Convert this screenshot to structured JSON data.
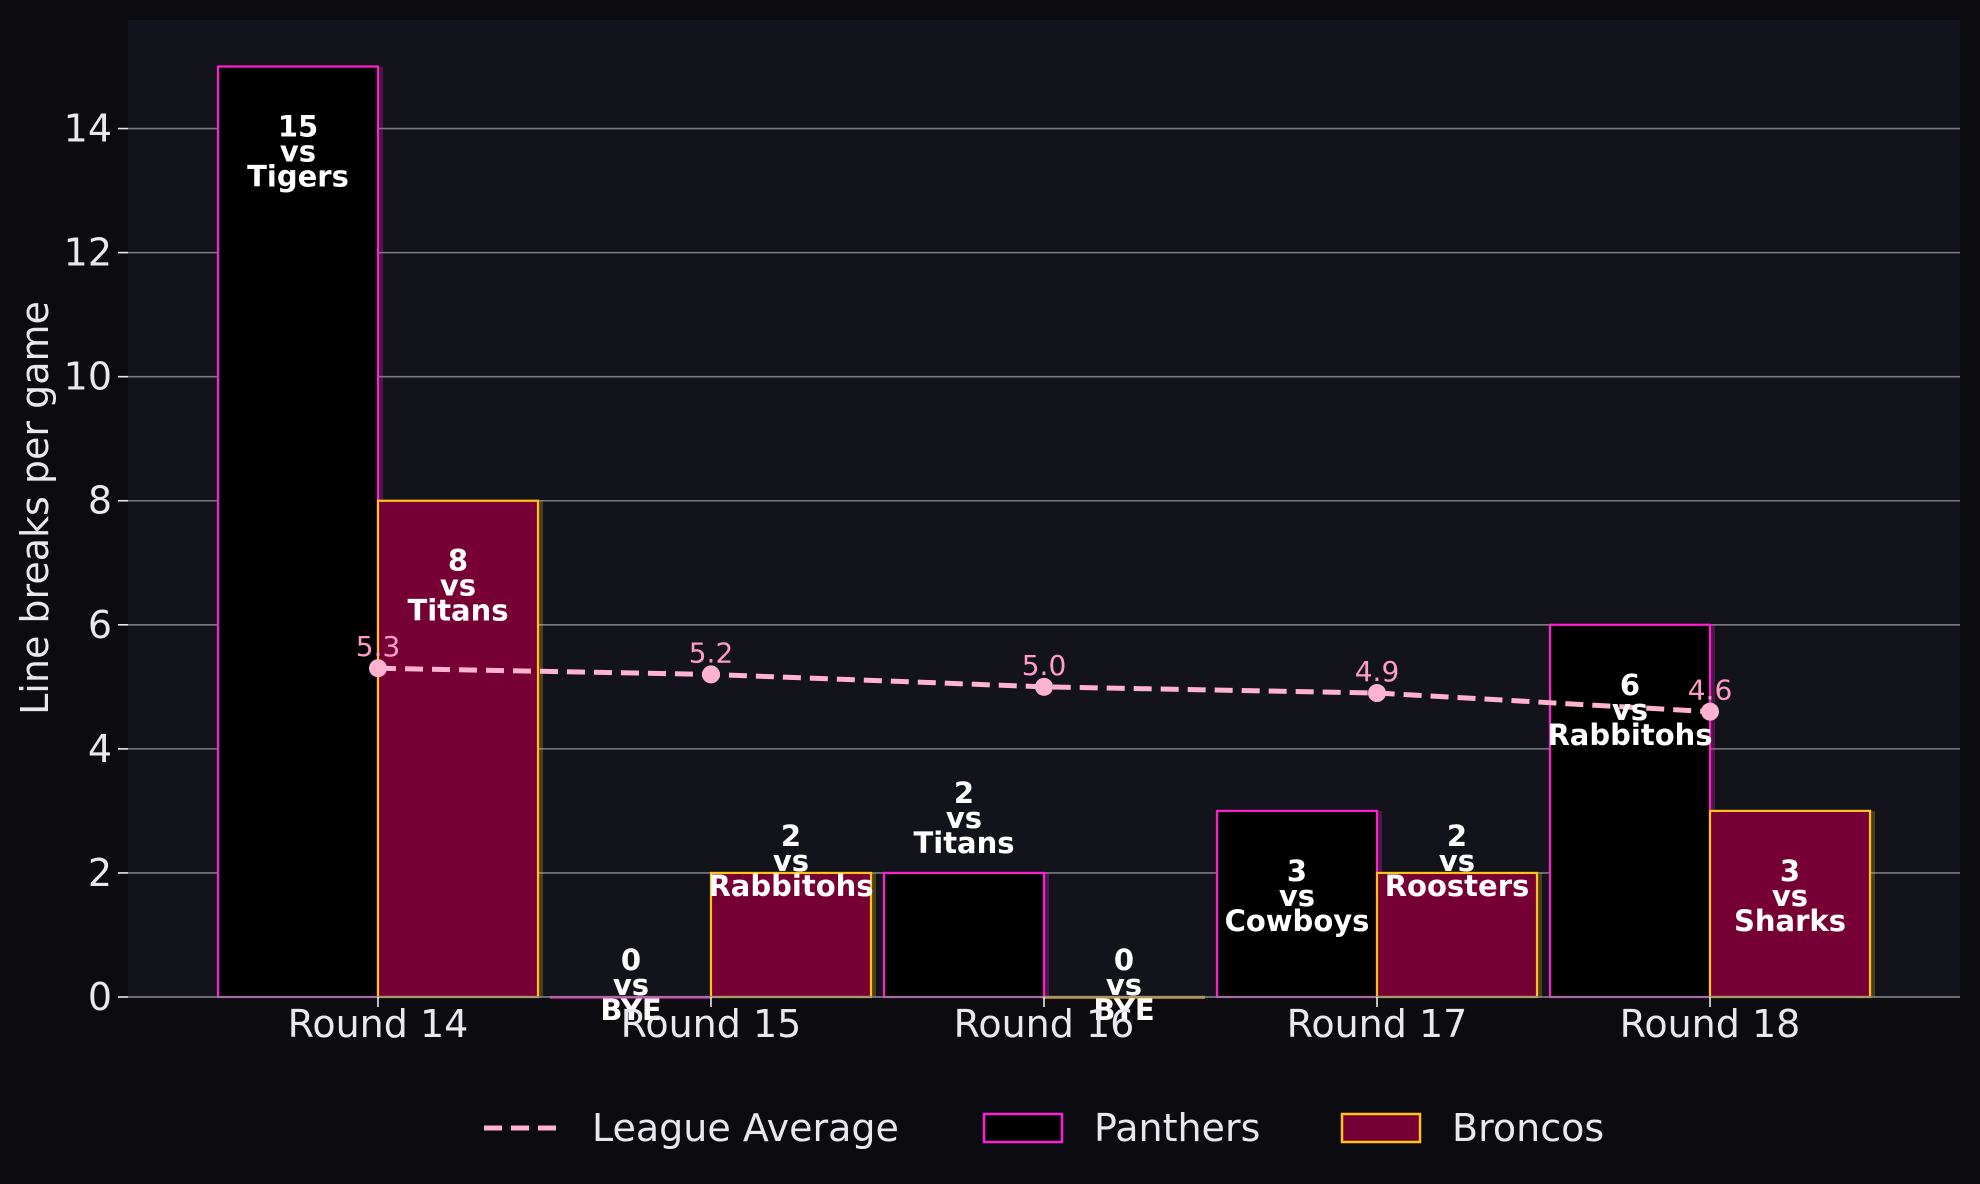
{
  "chart_data": {
    "type": "bar",
    "categories": [
      "Round 14",
      "Round 15",
      "Round 16",
      "Round 17",
      "Round 18"
    ],
    "ylabel": "Line breaks per game",
    "xlabel": "",
    "ylim": [
      0,
      15.75
    ],
    "yticks": [
      0,
      2,
      4,
      6,
      8,
      10,
      12,
      14
    ],
    "grid": "horizontal",
    "legend_position": "bottom",
    "series": [
      {
        "name": "Panthers",
        "type": "bar",
        "values": [
          15,
          0,
          2,
          3,
          6
        ],
        "opponents": [
          "Tigers",
          "BYE",
          "Titans",
          "Cowboys",
          "Rabbitohs"
        ],
        "fill": "#000000",
        "edge": "#ff1fd2"
      },
      {
        "name": "Broncos",
        "type": "bar",
        "values": [
          8,
          2,
          0,
          2,
          3
        ],
        "opponents": [
          "Titans",
          "Rabbitohs",
          "BYE",
          "Roosters",
          "Sharks"
        ],
        "fill": "#760034",
        "edge": "#ffc21a"
      },
      {
        "name": "League Average",
        "type": "line",
        "values": [
          5.3,
          5.2,
          5.0,
          4.9,
          4.6
        ],
        "color": "#ffb3d1"
      }
    ],
    "vs_text": "vs",
    "colors": {
      "figure_background": "#0b0b10",
      "plot_background": "#13131b",
      "grid": "#7a7a80",
      "text": "#e8e8ee"
    }
  }
}
